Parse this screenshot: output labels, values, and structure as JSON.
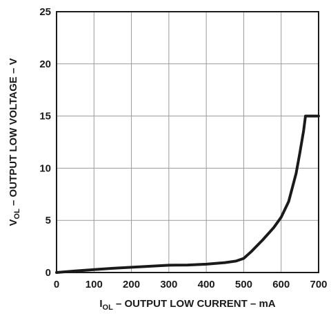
{
  "chart_data": {
    "type": "line",
    "xlabel": {
      "main": "I",
      "sub": "OL",
      "rest": " – OUTPUT LOW CURRENT – mA"
    },
    "ylabel": {
      "main": "V",
      "sub": "OL",
      "rest": " – OUTPUT LOW VOLTAGE – V"
    },
    "xlim": [
      0,
      700
    ],
    "ylim": [
      0,
      25
    ],
    "xticks": [
      0,
      100,
      200,
      300,
      400,
      500,
      600,
      700
    ],
    "yticks": [
      0,
      5,
      10,
      15,
      20,
      25
    ],
    "grid": true,
    "series": [
      {
        "x": [
          0,
          50,
          100,
          150,
          200,
          250,
          300,
          350,
          400,
          450,
          480,
          500,
          520,
          550,
          580,
          600,
          620,
          640,
          650,
          660,
          665,
          670,
          680,
          700
        ],
        "y": [
          0.0,
          0.15,
          0.28,
          0.4,
          0.5,
          0.6,
          0.7,
          0.72,
          0.8,
          0.95,
          1.1,
          1.35,
          2.0,
          3.1,
          4.3,
          5.3,
          6.8,
          9.5,
          11.5,
          13.6,
          15.0,
          15.0,
          15.0,
          15.0
        ]
      }
    ]
  }
}
